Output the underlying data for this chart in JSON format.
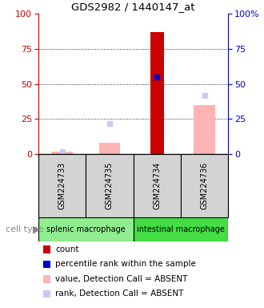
{
  "title": "GDS2982 / 1440147_at",
  "samples": [
    "GSM224733",
    "GSM224735",
    "GSM224734",
    "GSM224736"
  ],
  "count_values": [
    null,
    null,
    87,
    null
  ],
  "percentile_values": [
    null,
    null,
    55,
    null
  ],
  "value_absent": [
    2,
    8,
    null,
    35
  ],
  "rank_absent": [
    2,
    22,
    null,
    42
  ],
  "ylim": [
    0,
    100
  ],
  "left_axis_color": "#cc0000",
  "right_axis_color": "#0000cc",
  "count_color": "#cc0000",
  "percentile_color": "#0000cc",
  "value_absent_color": "#ffb3b3",
  "rank_absent_color": "#c8c8ff",
  "group_colors": [
    "#90ee90",
    "#44dd44"
  ],
  "group_labels": [
    "splenic macrophage",
    "intestinal macrophage"
  ],
  "group_ranges": [
    [
      0,
      1
    ],
    [
      2,
      3
    ]
  ],
  "legend_items": [
    {
      "label": "count",
      "color": "#cc0000"
    },
    {
      "label": "percentile rank within the sample",
      "color": "#0000cc"
    },
    {
      "label": "value, Detection Call = ABSENT",
      "color": "#ffb3b3"
    },
    {
      "label": "rank, Detection Call = ABSENT",
      "color": "#c8c8ff"
    }
  ]
}
